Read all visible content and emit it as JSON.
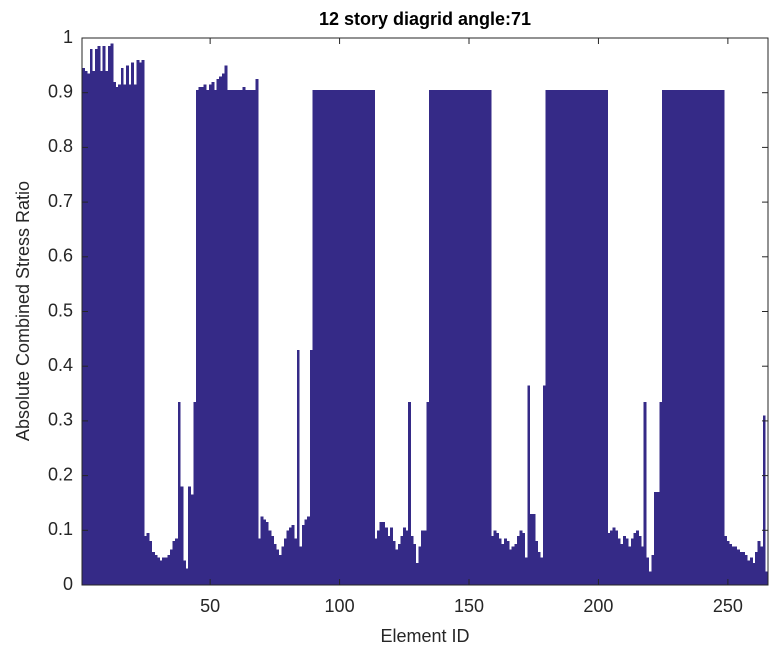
{
  "chart_data": {
    "type": "bar",
    "title": "12 story diagrid angle:71",
    "xlabel": "Element ID",
    "ylabel": "Absolute Combined Stress Ratio",
    "color": "#352a87",
    "xlim": [
      0.5,
      265.5
    ],
    "ylim": [
      0,
      1
    ],
    "xticks": [
      50,
      100,
      150,
      200,
      250
    ],
    "yticks": [
      0,
      0.1,
      0.2,
      0.3,
      0.4,
      0.5,
      0.6,
      0.7,
      0.8,
      0.9,
      1
    ],
    "grid": false,
    "x": [
      1,
      2,
      3,
      4,
      5,
      6,
      7,
      8,
      9,
      10,
      11,
      12,
      13,
      14,
      15,
      16,
      17,
      18,
      19,
      20,
      21,
      22,
      23,
      24,
      25,
      26,
      27,
      28,
      29,
      30,
      31,
      32,
      33,
      34,
      35,
      36,
      37,
      38,
      39,
      40,
      41,
      42,
      43,
      44,
      45,
      46,
      47,
      48,
      49,
      50,
      51,
      52,
      53,
      54,
      55,
      56,
      57,
      58,
      59,
      60,
      61,
      62,
      63,
      64,
      65,
      66,
      67,
      68,
      69,
      70,
      71,
      72,
      73,
      74,
      75,
      76,
      77,
      78,
      79,
      80,
      81,
      82,
      83,
      84,
      85,
      86,
      87,
      88,
      89,
      90,
      91,
      92,
      93,
      94,
      95,
      96,
      97,
      98,
      99,
      100,
      101,
      102,
      103,
      104,
      105,
      106,
      107,
      108,
      109,
      110,
      111,
      112,
      113,
      114,
      115,
      116,
      117,
      118,
      119,
      120,
      121,
      122,
      123,
      124,
      125,
      126,
      127,
      128,
      129,
      130,
      131,
      132,
      133,
      134,
      135,
      136,
      137,
      138,
      139,
      140,
      141,
      142,
      143,
      144,
      145,
      146,
      147,
      148,
      149,
      150,
      151,
      152,
      153,
      154,
      155,
      156,
      157,
      158,
      159,
      160,
      161,
      162,
      163,
      164,
      165,
      166,
      167,
      168,
      169,
      170,
      171,
      172,
      173,
      174,
      175,
      176,
      177,
      178,
      179,
      180,
      181,
      182,
      183,
      184,
      185,
      186,
      187,
      188,
      189,
      190,
      191,
      192,
      193,
      194,
      195,
      196,
      197,
      198,
      199,
      200,
      201,
      202,
      203,
      204,
      205,
      206,
      207,
      208,
      209,
      210,
      211,
      212,
      213,
      214,
      215,
      216,
      217,
      218,
      219,
      220,
      221,
      222,
      223,
      224,
      225,
      226,
      227,
      228,
      229,
      230,
      231,
      232,
      233,
      234,
      235,
      236,
      237,
      238,
      239,
      240,
      241,
      242,
      243,
      244,
      245,
      246,
      247,
      248,
      249,
      250,
      251,
      252,
      253,
      254,
      255,
      256,
      257,
      258,
      259,
      260,
      261,
      262,
      263,
      264,
      265
    ],
    "values": [
      0.945,
      0.94,
      0.935,
      0.98,
      0.94,
      0.98,
      0.985,
      0.94,
      0.985,
      0.94,
      0.985,
      0.99,
      0.92,
      0.91,
      0.915,
      0.945,
      0.915,
      0.95,
      0.915,
      0.955,
      0.915,
      0.96,
      0.955,
      0.96,
      0.09,
      0.095,
      0.08,
      0.06,
      0.055,
      0.05,
      0.045,
      0.05,
      0.05,
      0.055,
      0.065,
      0.08,
      0.085,
      0.335,
      0.18,
      0.045,
      0.03,
      0.18,
      0.165,
      0.335,
      0.905,
      0.91,
      0.91,
      0.915,
      0.905,
      0.915,
      0.92,
      0.905,
      0.925,
      0.93,
      0.935,
      0.95,
      0.905,
      0.905,
      0.905,
      0.905,
      0.905,
      0.905,
      0.91,
      0.905,
      0.905,
      0.905,
      0.905,
      0.925,
      0.085,
      0.125,
      0.12,
      0.115,
      0.1,
      0.09,
      0.075,
      0.065,
      0.055,
      0.07,
      0.085,
      0.1,
      0.105,
      0.11,
      0.085,
      0.43,
      0.07,
      0.11,
      0.12,
      0.125,
      0.43,
      0.905,
      0.905,
      0.905,
      0.905,
      0.905,
      0.905,
      0.905,
      0.905,
      0.905,
      0.905,
      0.905,
      0.905,
      0.905,
      0.905,
      0.905,
      0.905,
      0.905,
      0.905,
      0.905,
      0.905,
      0.905,
      0.905,
      0.905,
      0.905,
      0.085,
      0.1,
      0.115,
      0.115,
      0.105,
      0.09,
      0.105,
      0.08,
      0.065,
      0.075,
      0.09,
      0.105,
      0.1,
      0.335,
      0.09,
      0.075,
      0.04,
      0.07,
      0.1,
      0.1,
      0.335,
      0.905,
      0.905,
      0.905,
      0.905,
      0.905,
      0.905,
      0.905,
      0.905,
      0.905,
      0.905,
      0.905,
      0.905,
      0.905,
      0.905,
      0.905,
      0.905,
      0.905,
      0.905,
      0.905,
      0.905,
      0.905,
      0.905,
      0.905,
      0.905,
      0.09,
      0.1,
      0.095,
      0.085,
      0.075,
      0.085,
      0.08,
      0.065,
      0.07,
      0.075,
      0.09,
      0.1,
      0.095,
      0.05,
      0.365,
      0.13,
      0.13,
      0.08,
      0.06,
      0.05,
      0.365,
      0.905,
      0.905,
      0.905,
      0.905,
      0.905,
      0.905,
      0.905,
      0.905,
      0.905,
      0.905,
      0.905,
      0.905,
      0.905,
      0.905,
      0.905,
      0.905,
      0.905,
      0.905,
      0.905,
      0.905,
      0.905,
      0.905,
      0.905,
      0.905,
      0.095,
      0.1,
      0.105,
      0.1,
      0.085,
      0.075,
      0.09,
      0.085,
      0.07,
      0.085,
      0.095,
      0.1,
      0.09,
      0.07,
      0.335,
      0.05,
      0.025,
      0.055,
      0.17,
      0.17,
      0.335,
      0.905,
      0.905,
      0.905,
      0.905,
      0.905,
      0.905,
      0.905,
      0.905,
      0.905,
      0.905,
      0.905,
      0.905,
      0.905,
      0.905,
      0.905,
      0.905,
      0.905,
      0.905,
      0.905,
      0.905,
      0.905,
      0.905,
      0.905,
      0.905,
      0.09,
      0.08,
      0.075,
      0.07,
      0.07,
      0.065,
      0.06,
      0.06,
      0.055,
      0.045,
      0.05,
      0.04,
      0.06,
      0.08,
      0.07,
      0.31,
      0.025
    ]
  }
}
